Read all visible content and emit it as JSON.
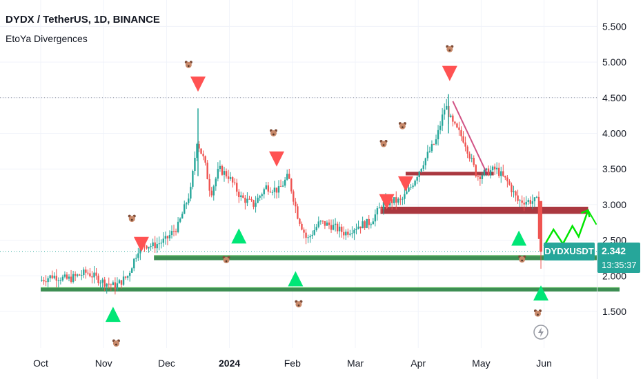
{
  "header": {
    "title": "DYDX / TetherUS, 1D, BINANCE",
    "indicator": "EtoYa Divergences"
  },
  "price_badge": {
    "ticker": "DYDXUSDT",
    "price": "2.342",
    "countdown": "13:35:37"
  },
  "colors": {
    "up": "#26a69a",
    "down": "#ef5350",
    "bull_signal": "#00e676",
    "bear_signal": "#ff5252",
    "resistance_zone": "#a1222b",
    "support_zone": "#1b7a35",
    "projection": "#00e600"
  },
  "icons": {
    "bear_marker": "bear-face-icon",
    "bull_marker": "bear-face-icon",
    "lightning": "lightning-icon"
  },
  "chart_data": {
    "type": "candlestick",
    "y_axis": {
      "ticks": [
        "5.500",
        "5.000",
        "4.500",
        "4.000",
        "3.500",
        "3.000",
        "2.500",
        "2.000",
        "1.500"
      ],
      "tick_values": [
        5.5,
        5.0,
        4.5,
        4.0,
        3.5,
        3.0,
        2.5,
        2.0,
        1.5
      ],
      "range": [
        1.0,
        5.85
      ]
    },
    "x_axis": {
      "ticks": [
        "Oct",
        "Nov",
        "Dec",
        "2024",
        "Feb",
        "Mar",
        "Apr",
        "May",
        "Jun"
      ]
    },
    "price_path": [
      {
        "month": 0.0,
        "price": 1.93
      },
      {
        "month": 0.2,
        "price": 2.0
      },
      {
        "month": 0.45,
        "price": 1.95
      },
      {
        "month": 0.75,
        "price": 2.05
      },
      {
        "month": 1.0,
        "price": 1.92
      },
      {
        "month": 1.2,
        "price": 1.85
      },
      {
        "month": 1.4,
        "price": 2.0
      },
      {
        "month": 1.6,
        "price": 2.45
      },
      {
        "month": 1.8,
        "price": 2.42
      },
      {
        "month": 2.0,
        "price": 2.5
      },
      {
        "month": 2.2,
        "price": 2.7
      },
      {
        "month": 2.4,
        "price": 3.2
      },
      {
        "month": 2.5,
        "price": 3.9
      },
      {
        "month": 2.62,
        "price": 3.6
      },
      {
        "month": 2.72,
        "price": 3.15
      },
      {
        "month": 2.85,
        "price": 3.5
      },
      {
        "month": 3.0,
        "price": 3.4
      },
      {
        "month": 3.2,
        "price": 3.1
      },
      {
        "month": 3.4,
        "price": 3.0
      },
      {
        "month": 3.6,
        "price": 3.25
      },
      {
        "month": 3.8,
        "price": 3.2
      },
      {
        "month": 3.95,
        "price": 3.4
      },
      {
        "month": 4.1,
        "price": 2.85
      },
      {
        "month": 4.25,
        "price": 2.5
      },
      {
        "month": 4.45,
        "price": 2.75
      },
      {
        "month": 4.65,
        "price": 2.7
      },
      {
        "month": 4.85,
        "price": 2.6
      },
      {
        "month": 5.05,
        "price": 2.7
      },
      {
        "month": 5.25,
        "price": 2.75
      },
      {
        "month": 5.45,
        "price": 3.0
      },
      {
        "month": 5.6,
        "price": 3.05
      },
      {
        "month": 5.75,
        "price": 3.05
      },
      {
        "month": 5.9,
        "price": 3.25
      },
      {
        "month": 6.1,
        "price": 3.6
      },
      {
        "month": 6.3,
        "price": 3.9
      },
      {
        "month": 6.45,
        "price": 4.4
      },
      {
        "month": 6.55,
        "price": 4.15
      },
      {
        "month": 6.75,
        "price": 3.9
      },
      {
        "month": 6.95,
        "price": 3.4
      },
      {
        "month": 7.1,
        "price": 3.45
      },
      {
        "month": 7.25,
        "price": 3.5
      },
      {
        "month": 7.45,
        "price": 3.3
      },
      {
        "month": 7.6,
        "price": 3.05
      },
      {
        "month": 7.75,
        "price": 3.05
      },
      {
        "month": 7.9,
        "price": 3.05
      },
      {
        "month": 7.95,
        "price": 2.34
      }
    ],
    "zones": [
      {
        "kind": "resistance",
        "from_month": 5.4,
        "to_month": 8.7,
        "low": 2.87,
        "high": 2.97
      },
      {
        "kind": "resistance",
        "from_month": 5.8,
        "to_month": 7.2,
        "low": 3.41,
        "high": 3.46
      },
      {
        "kind": "support",
        "from_month": 1.8,
        "to_month": 9.2,
        "low": 2.22,
        "high": 2.28
      },
      {
        "kind": "support",
        "from_month": 0.0,
        "to_month": 9.2,
        "low": 1.78,
        "high": 1.83
      }
    ],
    "trendline": [
      {
        "month": 6.55,
        "price": 4.45
      },
      {
        "month": 7.1,
        "price": 3.42
      }
    ],
    "projection": [
      {
        "month": 8.0,
        "price": 2.42
      },
      {
        "month": 8.15,
        "price": 2.65
      },
      {
        "month": 8.3,
        "price": 2.45
      },
      {
        "month": 8.45,
        "price": 2.7
      },
      {
        "month": 8.55,
        "price": 2.55
      },
      {
        "month": 8.7,
        "price": 2.92
      }
    ],
    "signals": [
      {
        "kind": "bull",
        "month": 1.15,
        "price": 1.45
      },
      {
        "kind": "bear",
        "month": 1.6,
        "price": 2.45
      },
      {
        "kind": "bear",
        "month": 2.5,
        "price": 4.7
      },
      {
        "kind": "bull",
        "month": 3.15,
        "price": 2.55
      },
      {
        "kind": "bear",
        "month": 3.75,
        "price": 3.65
      },
      {
        "kind": "bull",
        "month": 4.05,
        "price": 1.95
      },
      {
        "kind": "bear",
        "month": 5.5,
        "price": 3.05
      },
      {
        "kind": "bear",
        "month": 5.8,
        "price": 3.3
      },
      {
        "kind": "bear",
        "month": 6.5,
        "price": 4.85
      },
      {
        "kind": "bull",
        "month": 7.6,
        "price": 2.52
      },
      {
        "kind": "bull",
        "month": 7.95,
        "price": 1.75
      }
    ],
    "bear_markers": [
      {
        "month": 1.2,
        "price": 1.05
      },
      {
        "month": 1.45,
        "price": 2.8
      },
      {
        "month": 2.35,
        "price": 4.96
      },
      {
        "month": 2.95,
        "price": 2.22
      },
      {
        "month": 3.7,
        "price": 4.0
      },
      {
        "month": 4.1,
        "price": 1.6
      },
      {
        "month": 5.45,
        "price": 3.85
      },
      {
        "month": 5.75,
        "price": 4.1
      },
      {
        "month": 6.5,
        "price": 5.18
      },
      {
        "month": 7.65,
        "price": 2.23
      },
      {
        "month": 7.9,
        "price": 1.47
      }
    ]
  }
}
